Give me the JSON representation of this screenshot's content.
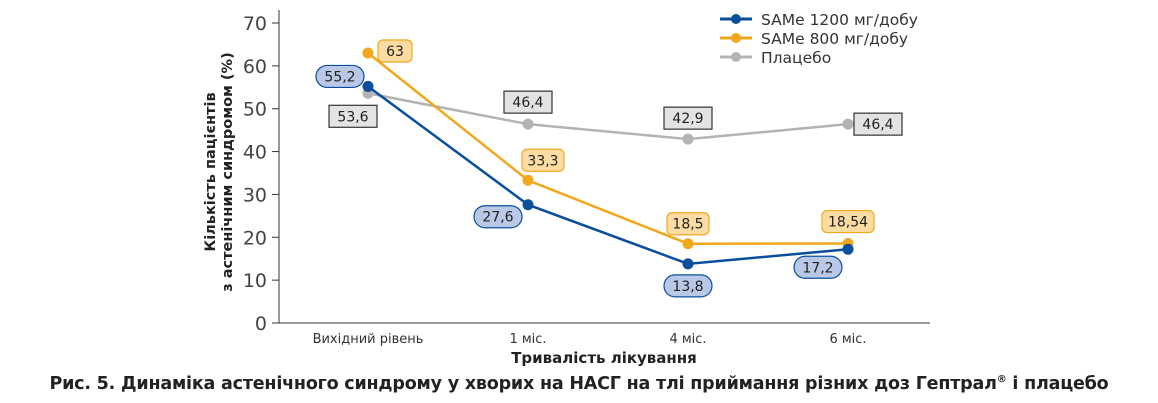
{
  "chart_data": {
    "type": "line",
    "title": "",
    "xlabel": "Тривалість лікування",
    "ylabel": [
      "Кількість пацієнтів",
      "з астенічним синдромом (%)"
    ],
    "ylim": [
      0,
      70
    ],
    "yticks": [
      0,
      10,
      20,
      30,
      40,
      50,
      60,
      70
    ],
    "categories": [
      "Вихідний рівень",
      "1 міс.",
      "4 міс.",
      "6 міс."
    ],
    "grid": false,
    "legend_position": "top-right",
    "series": [
      {
        "name": "SAMe 1200 мг/добу",
        "color": "#0a4f9c",
        "label_fill": "#b8c8e6",
        "label_shape": "pill",
        "values": [
          55.2,
          27.6,
          13.8,
          17.2
        ],
        "labels": [
          "55,2",
          "27,6",
          "13,8",
          "17,2"
        ]
      },
      {
        "name": "SAMe 800 мг/добу",
        "color": "#f2a81d",
        "label_fill": "#fcdca3",
        "label_shape": "rounded",
        "values": [
          63,
          33.3,
          18.5,
          18.54
        ],
        "labels": [
          "63",
          "33,3",
          "18,5",
          "18,54"
        ]
      },
      {
        "name": "Плацебо",
        "color": "#b3b3b3",
        "label_fill": "#e3e3e3",
        "label_shape": "box",
        "values": [
          53.6,
          46.4,
          42.9,
          46.4
        ],
        "labels": [
          "53,6",
          "46,4",
          "42,9",
          "46,4"
        ]
      }
    ]
  },
  "caption": {
    "text": "Рис. 5. Динаміка астенічного синдрому у хворих на НАСГ на тлі приймання різних доз Гептрал",
    "sup": "®",
    "tail": " і плацебо"
  }
}
